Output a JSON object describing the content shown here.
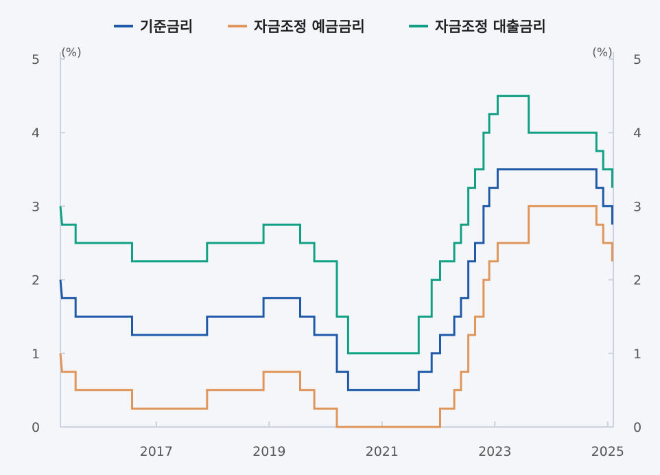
{
  "chart_data": {
    "type": "line",
    "title": "",
    "xlabel": "",
    "ylabel_left": "(%)",
    "ylabel_right": "(%)",
    "xlim": [
      2015.3,
      2025.1
    ],
    "ylim": [
      0,
      5
    ],
    "x_ticks": [
      2017,
      2019,
      2021,
      2023,
      2025
    ],
    "y_ticks_left": [
      0,
      1,
      2,
      3,
      4,
      5
    ],
    "y_ticks_right": [
      0,
      1,
      2,
      3,
      4,
      5
    ],
    "grid": false,
    "legend_position": "top",
    "series": [
      {
        "name": "기준금리",
        "color": "#1f5aa8",
        "points": [
          [
            2015.3,
            2.0
          ],
          [
            2015.33,
            1.75
          ],
          [
            2015.57,
            1.75
          ],
          [
            2015.57,
            1.5
          ],
          [
            2016.57,
            1.5
          ],
          [
            2016.57,
            1.25
          ],
          [
            2017.9,
            1.25
          ],
          [
            2017.9,
            1.5
          ],
          [
            2018.9,
            1.5
          ],
          [
            2018.9,
            1.75
          ],
          [
            2019.55,
            1.75
          ],
          [
            2019.55,
            1.5
          ],
          [
            2019.8,
            1.5
          ],
          [
            2019.8,
            1.25
          ],
          [
            2020.2,
            1.25
          ],
          [
            2020.2,
            0.75
          ],
          [
            2020.4,
            0.75
          ],
          [
            2020.4,
            0.5
          ],
          [
            2021.65,
            0.5
          ],
          [
            2021.65,
            0.75
          ],
          [
            2021.88,
            0.75
          ],
          [
            2021.88,
            1.0
          ],
          [
            2022.03,
            1.0
          ],
          [
            2022.03,
            1.25
          ],
          [
            2022.28,
            1.25
          ],
          [
            2022.28,
            1.5
          ],
          [
            2022.4,
            1.5
          ],
          [
            2022.4,
            1.75
          ],
          [
            2022.53,
            1.75
          ],
          [
            2022.53,
            2.25
          ],
          [
            2022.65,
            2.25
          ],
          [
            2022.65,
            2.5
          ],
          [
            2022.8,
            2.5
          ],
          [
            2022.8,
            3.0
          ],
          [
            2022.9,
            3.0
          ],
          [
            2022.9,
            3.25
          ],
          [
            2023.05,
            3.25
          ],
          [
            2023.05,
            3.5
          ],
          [
            2024.8,
            3.5
          ],
          [
            2024.8,
            3.25
          ],
          [
            2024.92,
            3.25
          ],
          [
            2024.92,
            3.0
          ],
          [
            2025.08,
            3.0
          ],
          [
            2025.08,
            2.75
          ]
        ]
      },
      {
        "name": "자금조정 예금금리",
        "color": "#e0955a",
        "points": [
          [
            2015.3,
            1.0
          ],
          [
            2015.33,
            0.75
          ],
          [
            2015.57,
            0.75
          ],
          [
            2015.57,
            0.5
          ],
          [
            2016.57,
            0.5
          ],
          [
            2016.57,
            0.25
          ],
          [
            2017.9,
            0.25
          ],
          [
            2017.9,
            0.5
          ],
          [
            2018.9,
            0.5
          ],
          [
            2018.9,
            0.75
          ],
          [
            2019.55,
            0.75
          ],
          [
            2019.55,
            0.5
          ],
          [
            2019.8,
            0.5
          ],
          [
            2019.8,
            0.25
          ],
          [
            2020.2,
            0.25
          ],
          [
            2020.2,
            0.0
          ],
          [
            2022.03,
            0.0
          ],
          [
            2022.03,
            0.25
          ],
          [
            2022.28,
            0.25
          ],
          [
            2022.28,
            0.5
          ],
          [
            2022.4,
            0.5
          ],
          [
            2022.4,
            0.75
          ],
          [
            2022.53,
            0.75
          ],
          [
            2022.53,
            1.25
          ],
          [
            2022.65,
            1.25
          ],
          [
            2022.65,
            1.5
          ],
          [
            2022.8,
            1.5
          ],
          [
            2022.8,
            2.0
          ],
          [
            2022.9,
            2.0
          ],
          [
            2022.9,
            2.25
          ],
          [
            2023.05,
            2.25
          ],
          [
            2023.05,
            2.5
          ],
          [
            2023.6,
            2.5
          ],
          [
            2023.6,
            3.0
          ],
          [
            2024.8,
            3.0
          ],
          [
            2024.8,
            2.75
          ],
          [
            2024.92,
            2.75
          ],
          [
            2024.92,
            2.5
          ],
          [
            2025.08,
            2.5
          ],
          [
            2025.08,
            2.25
          ]
        ]
      },
      {
        "name": "자금조정 대출금리",
        "color": "#12a085",
        "points": [
          [
            2015.3,
            3.0
          ],
          [
            2015.33,
            2.75
          ],
          [
            2015.57,
            2.75
          ],
          [
            2015.57,
            2.5
          ],
          [
            2016.57,
            2.5
          ],
          [
            2016.57,
            2.25
          ],
          [
            2017.9,
            2.25
          ],
          [
            2017.9,
            2.5
          ],
          [
            2018.9,
            2.5
          ],
          [
            2018.9,
            2.75
          ],
          [
            2019.55,
            2.75
          ],
          [
            2019.55,
            2.5
          ],
          [
            2019.8,
            2.5
          ],
          [
            2019.8,
            2.25
          ],
          [
            2020.2,
            2.25
          ],
          [
            2020.2,
            1.5
          ],
          [
            2020.4,
            1.5
          ],
          [
            2020.4,
            1.0
          ],
          [
            2021.65,
            1.0
          ],
          [
            2021.65,
            1.5
          ],
          [
            2021.88,
            1.5
          ],
          [
            2021.88,
            2.0
          ],
          [
            2022.03,
            2.0
          ],
          [
            2022.03,
            2.25
          ],
          [
            2022.28,
            2.25
          ],
          [
            2022.28,
            2.5
          ],
          [
            2022.4,
            2.5
          ],
          [
            2022.4,
            2.75
          ],
          [
            2022.53,
            2.75
          ],
          [
            2022.53,
            3.25
          ],
          [
            2022.65,
            3.25
          ],
          [
            2022.65,
            3.5
          ],
          [
            2022.8,
            3.5
          ],
          [
            2022.8,
            4.0
          ],
          [
            2022.9,
            4.0
          ],
          [
            2022.9,
            4.25
          ],
          [
            2023.05,
            4.25
          ],
          [
            2023.05,
            4.5
          ],
          [
            2023.6,
            4.5
          ],
          [
            2023.6,
            4.0
          ],
          [
            2024.8,
            4.0
          ],
          [
            2024.8,
            3.75
          ],
          [
            2024.92,
            3.75
          ],
          [
            2024.92,
            3.5
          ],
          [
            2025.08,
            3.5
          ],
          [
            2025.08,
            3.25
          ]
        ]
      }
    ]
  }
}
